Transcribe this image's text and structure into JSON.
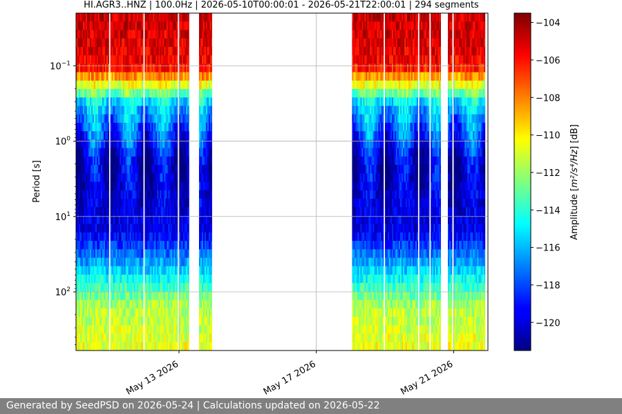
{
  "footer": {
    "text": "Generated by SeedPSD on 2026-05-24 | Calculations updated on 2026-05-22"
  },
  "chart_data": {
    "type": "heatmap",
    "title": "HI.AGR3..HNZ | 100.0Hz | 2026-05-10T00:00:01 - 2026-05-21T22:00:01 | 294 segments",
    "xlabel": "",
    "ylabel": "Period [s]",
    "x_axis": {
      "type": "date",
      "range": [
        "2026-05-10",
        "2026-05-22"
      ],
      "ticks": [
        {
          "value": "2026-05-13",
          "label": "May 13 2026"
        },
        {
          "value": "2026-05-17",
          "label": "May 17 2026"
        },
        {
          "value": "2026-05-21",
          "label": "May 21 2026"
        }
      ]
    },
    "y_axis": {
      "scale": "log",
      "inverted": true,
      "range": [
        0.02,
        600
      ],
      "ticks": [
        {
          "value": 0.1,
          "base": "10",
          "exp": "−1"
        },
        {
          "value": 1,
          "base": "10",
          "exp": "0"
        },
        {
          "value": 10,
          "base": "10",
          "exp": "1"
        },
        {
          "value": 100,
          "base": "10",
          "exp": "2"
        }
      ]
    },
    "grid": true,
    "colorbar": {
      "label_prefix": "Amplitude [",
      "label_math": "m²/s⁴/Hz",
      "label_suffix": "] [dB]",
      "range": [
        -121.5,
        -103.5
      ],
      "ticks": [
        {
          "value": -104,
          "label": "−104"
        },
        {
          "value": -106,
          "label": "−106"
        },
        {
          "value": -108,
          "label": "−108"
        },
        {
          "value": -110,
          "label": "−110"
        },
        {
          "value": -112,
          "label": "−112"
        },
        {
          "value": -114,
          "label": "−114"
        },
        {
          "value": -116,
          "label": "−116"
        },
        {
          "value": -118,
          "label": "−118"
        },
        {
          "value": -120,
          "label": "−120"
        }
      ]
    },
    "data_segments": [
      {
        "start": "2026-05-10T00:00",
        "end": "2026-05-10T23:00"
      },
      {
        "start": "2026-05-11T00:00",
        "end": "2026-05-11T22:00"
      },
      {
        "start": "2026-05-11T22:00",
        "end": "2026-05-11T23:00"
      },
      {
        "start": "2026-05-12T00:00",
        "end": "2026-05-12T23:00"
      },
      {
        "start": "2026-05-13T00:00",
        "end": "2026-05-13T07:00"
      },
      {
        "start": "2026-05-13T14:00",
        "end": "2026-05-13T23:00"
      },
      {
        "start": "2026-05-18T01:00",
        "end": "2026-05-18T23:00"
      },
      {
        "start": "2026-05-19T00:00",
        "end": "2026-05-19T23:00"
      },
      {
        "start": "2026-05-20T00:00",
        "end": "2026-05-20T07:00"
      },
      {
        "start": "2026-05-20T08:00",
        "end": "2026-05-20T15:00"
      },
      {
        "start": "2026-05-20T20:00",
        "end": "2026-05-20T23:00"
      },
      {
        "start": "2026-05-21T00:00",
        "end": "2026-05-21T22:00"
      }
    ],
    "data_gaps_note": ""
  }
}
